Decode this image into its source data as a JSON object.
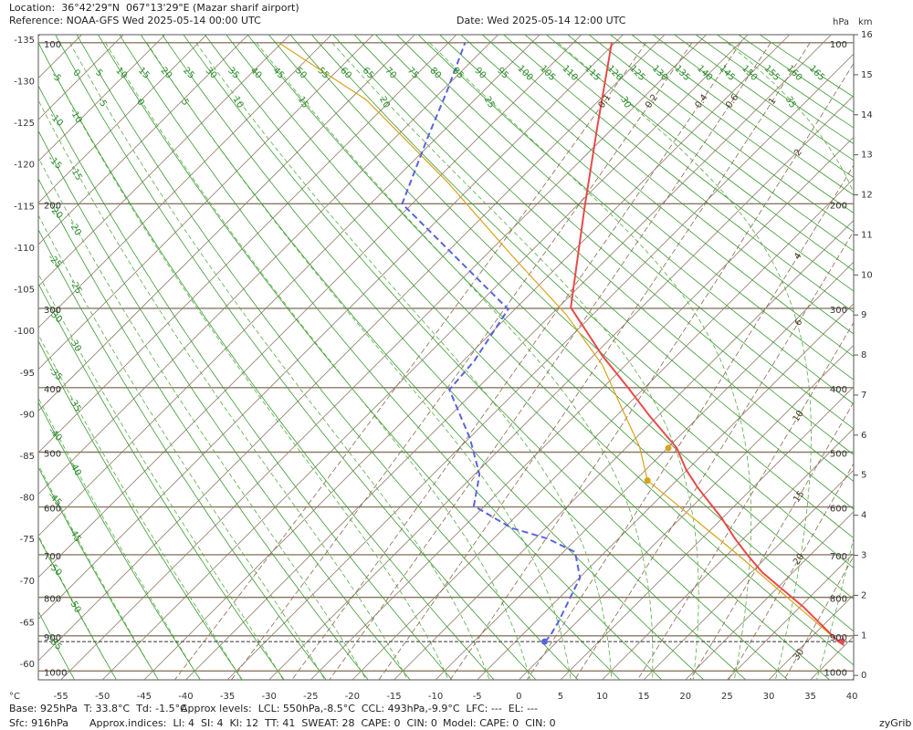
{
  "header": {
    "location": "Location:  36°42'29\"N  067°13'29\"E (Mazar sharif airport)",
    "reference": "Reference: NOAA-GFS Wed 2025-05-14 00:00 UTC",
    "date": "Date: Wed 2025-05-14 12:00 UTC"
  },
  "footer": {
    "base": "Base: 925hPa  T: 33.8°C  Td: -1.5°C",
    "levels": "Approx levels:  LCL: 550hPa,-8.5°C  CCL: 493hPa,-9.9°C  LFC: ---  EL: ---",
    "sfc": "Sfc: 916hPa",
    "indices": "Approx.indices:  LI: 4  SI: 4  KI: 12  TT: 41  SWEAT: 28  CAPE: 0  CIN: 0",
    "model": "Model: CAPE: 0  CIN: 0",
    "brand": "zyGrib"
  },
  "chart_data": {
    "type": "skewt",
    "xlabel": "°C",
    "xlim": [
      -57.7,
      40.2
    ],
    "xticks": [
      -55,
      -50,
      -45,
      -40,
      -35,
      -30,
      -25,
      -20,
      -15,
      -10,
      -5,
      0,
      5,
      10,
      15,
      20,
      25,
      30,
      35,
      40
    ],
    "left_ticks": [
      -135,
      -130,
      -125,
      -120,
      -115,
      -110,
      -105,
      -100,
      -95,
      -90,
      -85,
      -80,
      -75,
      -70,
      -65,
      -60
    ],
    "ylabel": "km",
    "ylim": [
      -0.11,
      16
    ],
    "yticks": [
      0,
      1,
      2,
      3,
      4,
      5,
      6,
      7,
      8,
      9,
      10,
      11,
      12,
      13,
      14,
      15,
      16
    ],
    "pressure_label": "hPa",
    "pressure_ticks": [
      100,
      200,
      300,
      400,
      500,
      600,
      700,
      800,
      900,
      1000
    ],
    "dry_adiabats": [
      -55,
      -50,
      -45,
      -40,
      -35,
      -30,
      -25,
      -20,
      -15,
      -10,
      -5,
      0,
      5,
      10,
      15,
      20,
      25,
      30,
      35,
      40,
      45,
      50,
      55,
      60,
      65,
      70,
      75,
      80,
      85,
      90,
      95,
      100,
      105,
      110,
      115,
      120,
      125,
      130,
      135,
      140,
      145,
      150,
      155,
      160,
      165
    ],
    "moist_adiabats": [
      -50,
      -45,
      -40,
      -35,
      -30,
      -25,
      -20,
      -15,
      -10,
      -5,
      0,
      5,
      10,
      15,
      20,
      25,
      30,
      35
    ],
    "mixing_ratios": [
      0.1,
      0.2,
      0.4,
      0.6,
      1,
      2,
      4,
      6,
      10,
      15,
      20,
      30
    ],
    "surface_pressure": 916,
    "temperature": {
      "color": "#e84a4a",
      "pressure": [
        916,
        824,
        740,
        700,
        665,
        621,
        587,
        564,
        531,
        493,
        441,
        402,
        357,
        299,
        205,
        146,
        100
      ],
      "values": [
        33.8,
        25.4,
        16.3,
        12.4,
        9.0,
        4.8,
        1.1,
        -1.5,
        -5.1,
        -8.9,
        -16.1,
        -21.7,
        -28.9,
        -38.5,
        -48.6,
        -56.9,
        -65.4
      ]
    },
    "dewpoint": {
      "color": "#5a64dc",
      "pressure": [
        916,
        901,
        859,
        801,
        753,
        694,
        665,
        642,
        598,
        539,
        477,
        403,
        363,
        301,
        200,
        152,
        124,
        100
      ],
      "values": [
        -1.5,
        -1.5,
        -2.3,
        -3.7,
        -4.9,
        -8.6,
        -13.5,
        -19.2,
        -26.3,
        -29.4,
        -34.9,
        -43.2,
        -43.7,
        -45.8,
        -71.2,
        -76.1,
        -79.4,
        -83.0
      ]
    },
    "parcel": {
      "color": "#d9a21b",
      "pressure": [
        916,
        700,
        550,
        491,
        441,
        369,
        307,
        245,
        183,
        129,
        100
      ],
      "values": [
        33.8,
        11.3,
        -8.5,
        -13.5,
        -19.0,
        -27.8,
        -38.2,
        -51.9,
        -68.4,
        -88.1,
        -105.4
      ]
    },
    "lcl": {
      "pressure": 550,
      "value": -8.5
    },
    "ccl": {
      "pressure": 493,
      "value": -9.9
    }
  }
}
